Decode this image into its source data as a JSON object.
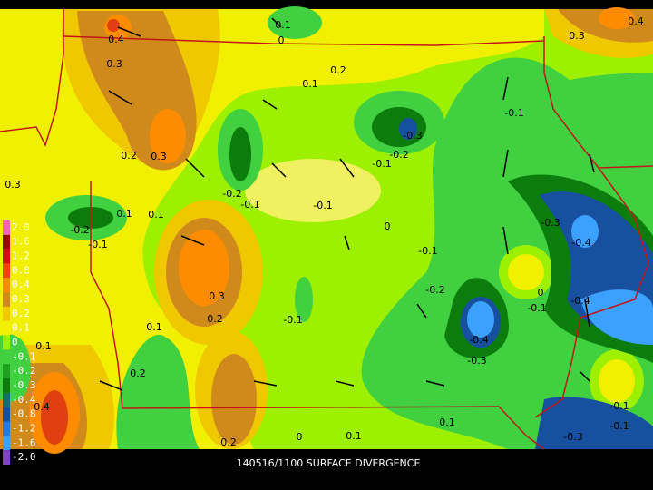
{
  "title": "140516/1100 SURFACE DIVERGENCE",
  "colorbar": {
    "labels": [
      "2.0",
      "1.6",
      "1.2",
      "0.8",
      "0.4",
      "0.3",
      "0.2",
      "0.1",
      "0",
      "-0.1",
      "-0.2",
      "-0.3",
      "-0.4",
      "-0.8",
      "-1.2",
      "-1.6",
      "-2.0"
    ]
  },
  "contour_labels": [
    "0.4",
    "0.3",
    "0.3",
    "0.2",
    "0.2",
    "0.1",
    "0.1",
    "-0.1",
    "0",
    "0.1",
    "-0.3",
    "-0.2",
    "-0.1",
    "-0.2",
    "-0.1",
    "-0.1",
    "0.1",
    "0",
    "-0.2",
    "-0.1",
    "0.3",
    "0.2",
    "0.1",
    "-0.1",
    "-0.1",
    "-0.3",
    "-0.4",
    "-0.4",
    "0",
    "-0.1",
    "-0.2",
    "-0.4",
    "-0.3",
    "0.2",
    "0.1",
    "0.1",
    "0",
    "0.1",
    "0.2",
    "-0.1",
    "-0.1",
    "-0.3",
    "0.3",
    "0.4",
    "0.4",
    "0.3"
  ]
}
